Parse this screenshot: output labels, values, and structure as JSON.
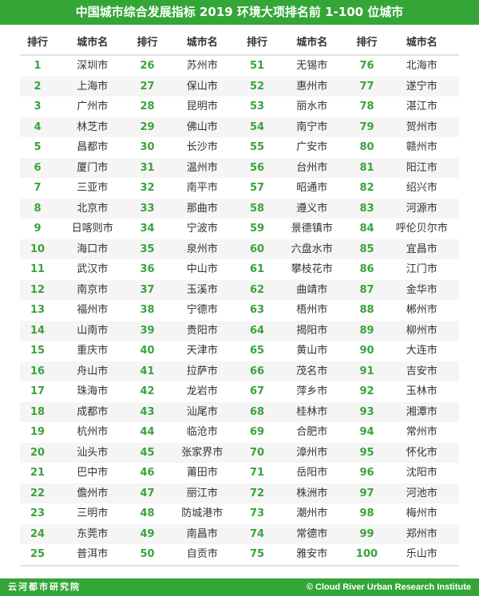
{
  "title": "中国城市综合发展指标 2019 环境大项排名前 1-100 位城市",
  "header": {
    "rank": "排行",
    "city": "城市名"
  },
  "cities": [
    "深圳市",
    "上海市",
    "广州市",
    "林芝市",
    "昌都市",
    "厦门市",
    "三亚市",
    "北京市",
    "日喀则市",
    "海口市",
    "武汉市",
    "南京市",
    "福州市",
    "山南市",
    "重庆市",
    "舟山市",
    "珠海市",
    "成都市",
    "杭州市",
    "汕头市",
    "巴中市",
    "儋州市",
    "三明市",
    "东莞市",
    "普洱市",
    "苏州市",
    "保山市",
    "昆明市",
    "佛山市",
    "长沙市",
    "温州市",
    "南平市",
    "那曲市",
    "宁波市",
    "泉州市",
    "中山市",
    "玉溪市",
    "宁德市",
    "贵阳市",
    "天津市",
    "拉萨市",
    "龙岩市",
    "汕尾市",
    "临沧市",
    "张家界市",
    "莆田市",
    "丽江市",
    "防城港市",
    "南昌市",
    "自贡市",
    "无锡市",
    "惠州市",
    "丽水市",
    "南宁市",
    "广安市",
    "台州市",
    "昭通市",
    "遵义市",
    "景德镇市",
    "六盘水市",
    "攀枝花市",
    "曲靖市",
    "梧州市",
    "揭阳市",
    "黄山市",
    "茂名市",
    "萍乡市",
    "桂林市",
    "合肥市",
    "漳州市",
    "岳阳市",
    "株洲市",
    "潮州市",
    "常德市",
    "雅安市",
    "北海市",
    "遂宁市",
    "湛江市",
    "贺州市",
    "赣州市",
    "阳江市",
    "绍兴市",
    "河源市",
    "呼伦贝尔市",
    "宜昌市",
    "江门市",
    "金华市",
    "郴州市",
    "柳州市",
    "大连市",
    "吉安市",
    "玉林市",
    "湘潭市",
    "常州市",
    "怀化市",
    "沈阳市",
    "河池市",
    "梅州市",
    "郑州市",
    "乐山市"
  ],
  "footer": {
    "left": "云河都市研究院",
    "right": "© Cloud River Urban Research Institute"
  },
  "colors": {
    "accent": "#33a637",
    "rank_text": "#3aa33a",
    "stripe": "#f5f5f5"
  }
}
